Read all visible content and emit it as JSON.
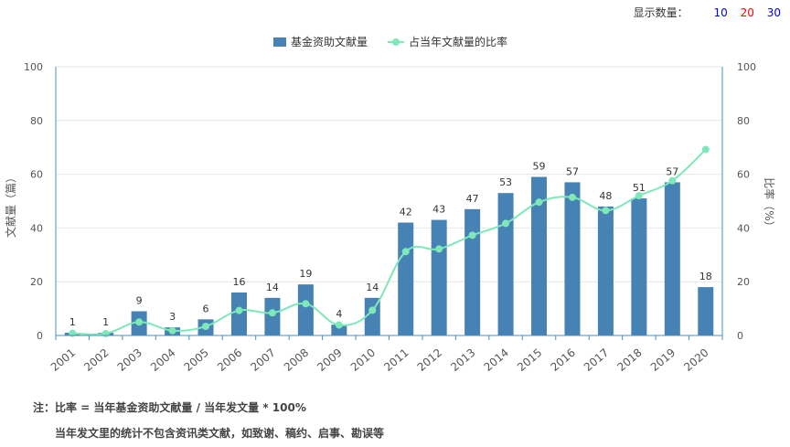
{
  "display": {
    "label": "显示数量：",
    "options": [
      "10",
      "20",
      "30"
    ]
  },
  "legend": {
    "bar_series": "基金资助文献量",
    "line_series": "占当年文献量的比率"
  },
  "colors": {
    "bar": "#4682b4",
    "line": "#7ee8b8",
    "axis": "#4a90c0"
  },
  "notes": {
    "line1": "注：比率 = 当年基金资助文献量 / 当年发文量 * 100%",
    "line2": "当年发文里的统计不包含资讯类文献，如致谢、稿约、启事、勘误等"
  },
  "chart_data": {
    "type": "bar",
    "categories": [
      "2001",
      "2002",
      "2003",
      "2004",
      "2005",
      "2006",
      "2007",
      "2008",
      "2009",
      "2010",
      "2011",
      "2012",
      "2013",
      "2014",
      "2015",
      "2016",
      "2017",
      "2018",
      "2019",
      "2020"
    ],
    "series": [
      {
        "name": "基金资助文献量",
        "type": "bar",
        "axis": "left",
        "values": [
          1,
          1,
          9,
          3,
          6,
          16,
          14,
          19,
          4,
          14,
          42,
          43,
          47,
          53,
          59,
          57,
          48,
          51,
          57,
          18
        ]
      },
      {
        "name": "占当年文献量的比率",
        "type": "line",
        "axis": "right",
        "values": [
          0.8,
          0.7,
          5.0,
          1.8,
          3.4,
          9.3,
          8.4,
          11.8,
          3.9,
          9.4,
          31.2,
          32.2,
          37.3,
          41.7,
          49.6,
          51.4,
          46.5,
          52.0,
          57.6,
          69.2
        ]
      }
    ],
    "ylabel": "文献量（篇）",
    "y2label": "比率（%）",
    "ylim": [
      0,
      100
    ],
    "y2lim": [
      0,
      100
    ],
    "yticks": [
      0,
      20,
      40,
      60,
      80,
      100
    ],
    "y2ticks": [
      0,
      20,
      40,
      60,
      80,
      100
    ],
    "grid": true,
    "legend_position": "top-center"
  }
}
